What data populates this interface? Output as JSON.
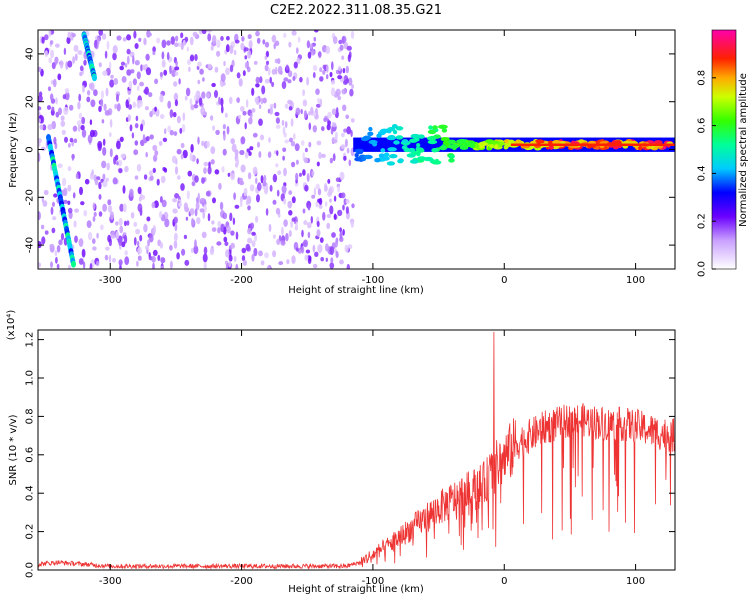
{
  "title": "C2E2.2022.311.08.35.G21",
  "chart_data": [
    {
      "type": "heatmap",
      "title": "C2E2.2022.311.08.35.G21",
      "xlabel": "Height of straight line (km)",
      "ylabel": "Frequency (Hz)",
      "xlim": [
        -355,
        130
      ],
      "ylim": [
        -50,
        50
      ],
      "xticks": [
        -300,
        -200,
        -100,
        0,
        100
      ],
      "xtick_labels": [
        "-300",
        "-200",
        "-100",
        "0",
        "100"
      ],
      "yticks": [
        -40,
        -20,
        0,
        20,
        40
      ],
      "ytick_labels": [
        "-40",
        "-20",
        "0",
        "20",
        "40"
      ],
      "colorbar": {
        "label": "Normalized spectral amplitude",
        "range": [
          0,
          1
        ],
        "ticks": [
          0.0,
          0.2,
          0.4,
          0.6,
          0.8
        ],
        "tick_labels": [
          "0.0",
          "0.2",
          "0.4",
          "0.6",
          "0.8"
        ],
        "colormap": "rainbow"
      },
      "features": [
        {
          "name": "diffuse noise region",
          "x_range": [
            -355,
            -115
          ],
          "y_range": [
            -50,
            50
          ],
          "amplitude": 0.18
        },
        {
          "name": "streak upper",
          "x": [
            -320,
            -312
          ],
          "y": [
            48,
            30
          ],
          "amplitude": 0.45
        },
        {
          "name": "streak lower",
          "x": [
            -347,
            -328
          ],
          "y": [
            5,
            -48
          ],
          "amplitude": 0.45
        },
        {
          "name": "carrier band",
          "x_range": [
            -115,
            130
          ],
          "y_center": 2,
          "y_halfwidth": 3,
          "amplitude_start": 0.35,
          "amplitude_end": 0.9
        }
      ]
    },
    {
      "type": "line",
      "xlabel": "Height of straight line (km)",
      "ylabel": "SNR (10 * v/v)",
      "yscale_label": "(x10⁴)",
      "xlim": [
        -355,
        130
      ],
      "ylim": [
        0,
        1.25
      ],
      "xticks": [
        -300,
        -200,
        -100,
        0,
        100
      ],
      "xtick_labels": [
        "-300",
        "-200",
        "-100",
        "0",
        "100"
      ],
      "yticks": [
        0.0,
        0.2,
        0.4,
        0.6,
        0.8,
        1.0,
        1.2
      ],
      "ytick_labels": [
        "0.0",
        "0.2",
        "0.4",
        "0.6",
        "0.8",
        "1.0",
        "1.2"
      ],
      "color": "#ee3333",
      "x": [
        -355,
        -340,
        -320,
        -300,
        -250,
        -200,
        -150,
        -120,
        -110,
        -100,
        -90,
        -80,
        -70,
        -60,
        -50,
        -40,
        -30,
        -20,
        -15,
        -10,
        -5,
        0,
        5,
        10,
        20,
        30,
        40,
        50,
        60,
        70,
        80,
        90,
        100,
        110,
        120,
        130
      ],
      "y": [
        0.03,
        0.04,
        0.03,
        0.02,
        0.02,
        0.02,
        0.02,
        0.02,
        0.04,
        0.08,
        0.12,
        0.17,
        0.22,
        0.27,
        0.32,
        0.36,
        0.4,
        0.43,
        0.45,
        0.5,
        0.55,
        0.58,
        0.62,
        0.66,
        0.7,
        0.74,
        0.76,
        0.78,
        0.78,
        0.77,
        0.76,
        0.76,
        0.75,
        0.73,
        0.71,
        0.7
      ],
      "spike": {
        "x": -8,
        "y": 1.24
      }
    }
  ]
}
